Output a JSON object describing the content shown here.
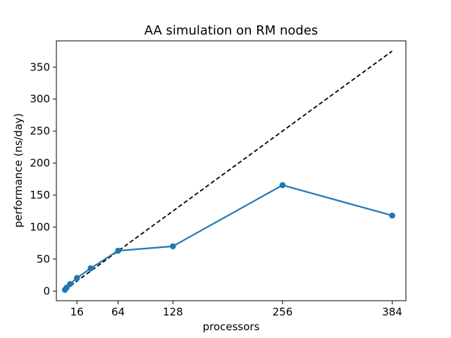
{
  "chart_data": {
    "type": "line",
    "title": "AA simulation on RM nodes",
    "xlabel": "processors",
    "ylabel": "performance (ns/day)",
    "xlim": [
      -8,
      400
    ],
    "ylim": [
      -15,
      391
    ],
    "xticks": [
      16,
      64,
      128,
      256,
      384
    ],
    "yticks": [
      0,
      50,
      100,
      150,
      200,
      250,
      300,
      350
    ],
    "grid": false,
    "series": [
      {
        "style": "solid-with-markers",
        "color": "#1f77b4",
        "x": [
          2,
          4,
          8,
          16,
          32,
          64,
          128,
          256,
          384
        ],
        "y": [
          2.0,
          5.5,
          11.0,
          20.5,
          35.5,
          63.0,
          70.0,
          165.5,
          118.0
        ]
      },
      {
        "style": "dashed",
        "color": "#000000",
        "x": [
          2,
          384
        ],
        "y": [
          2.0,
          375
        ]
      }
    ]
  }
}
